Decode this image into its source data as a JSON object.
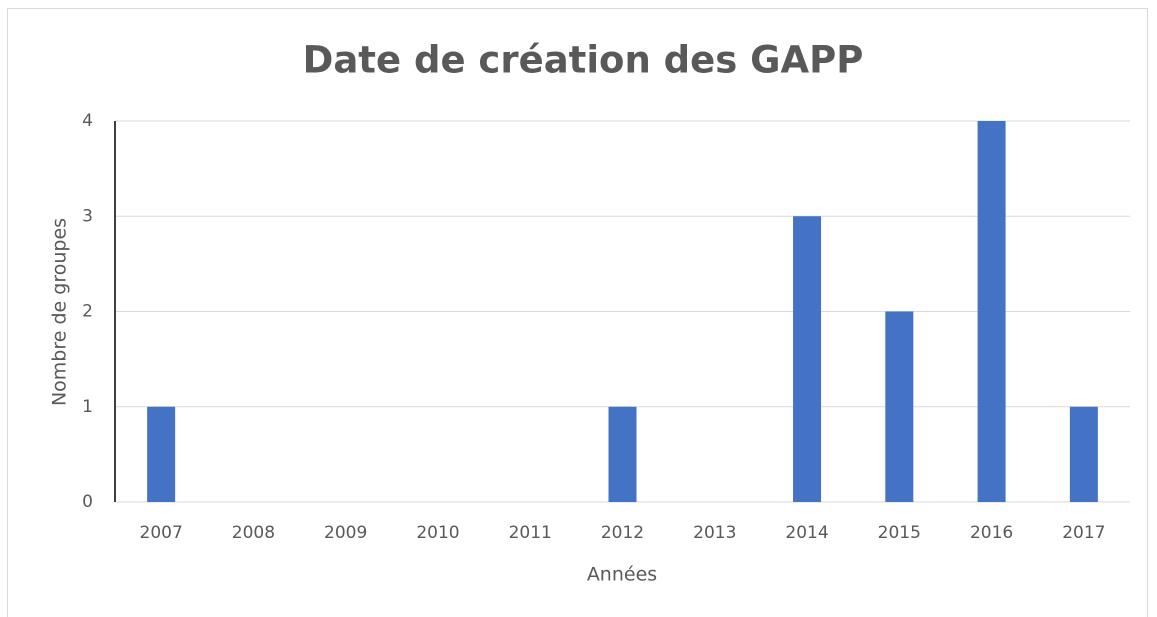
{
  "chart_data": {
    "type": "bar",
    "title": "Date de création des GAPP",
    "x_label": "Années",
    "y_label": "Nombre de groupes",
    "categories": [
      "2007",
      "2008",
      "2009",
      "2010",
      "2011",
      "2012",
      "2013",
      "2014",
      "2015",
      "2016",
      "2017"
    ],
    "values": [
      1,
      0,
      0,
      0,
      0,
      1,
      0,
      3,
      2,
      4,
      1
    ],
    "color": "#4472c4",
    "ylim": [
      0,
      4
    ],
    "yticks": [
      0,
      1,
      2,
      3,
      4
    ],
    "grid": true
  }
}
